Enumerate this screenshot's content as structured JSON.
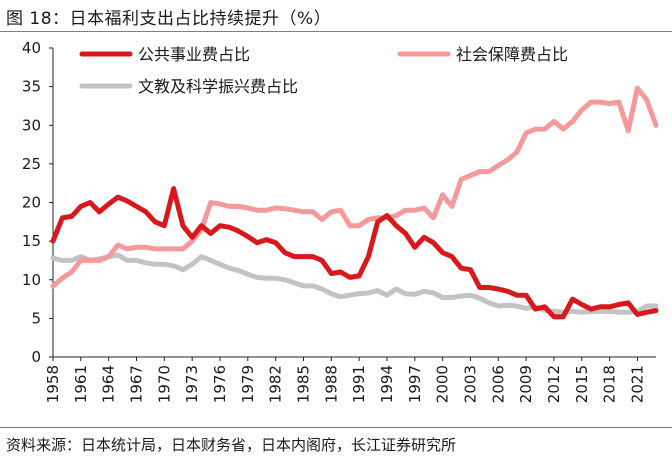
{
  "figure": {
    "title": "图 18：日本福利支出占比持续提升（%）",
    "source": "资料来源：日本统计局，日本财务省，日本内阁府，长江证券研究所"
  },
  "chart_data": {
    "type": "line",
    "title": "日本福利支出占比持续提升（%）",
    "xlabel": "",
    "ylabel": "",
    "ylim": [
      0,
      40
    ],
    "yticks": [
      0,
      5,
      10,
      15,
      20,
      25,
      30,
      35,
      40
    ],
    "xlim": [
      1958,
      2023
    ],
    "xticks": [
      "1958",
      "1961",
      "1964",
      "1967",
      "1970",
      "1973",
      "1976",
      "1979",
      "1982",
      "1985",
      "1988",
      "1991",
      "1994",
      "1997",
      "2000",
      "2003",
      "2006",
      "2009",
      "2012",
      "2015",
      "2018",
      "2021"
    ],
    "grid": false,
    "legend_position": "top",
    "x": [
      1958,
      1959,
      1960,
      1961,
      1962,
      1963,
      1964,
      1965,
      1966,
      1967,
      1968,
      1969,
      1970,
      1971,
      1972,
      1973,
      1974,
      1975,
      1976,
      1977,
      1978,
      1979,
      1980,
      1981,
      1982,
      1983,
      1984,
      1985,
      1986,
      1987,
      1988,
      1989,
      1990,
      1991,
      1992,
      1993,
      1994,
      1995,
      1996,
      1997,
      1998,
      1999,
      2000,
      2001,
      2002,
      2003,
      2004,
      2005,
      2006,
      2007,
      2008,
      2009,
      2010,
      2011,
      2012,
      2013,
      2014,
      2015,
      2016,
      2017,
      2018,
      2019,
      2020,
      2021,
      2022,
      2023
    ],
    "series": [
      {
        "name": "公共事业费占比",
        "color": "#d7191c",
        "values": [
          15,
          18,
          18.2,
          19.5,
          20,
          18.8,
          19.8,
          20.7,
          20.2,
          19.5,
          18.8,
          17.5,
          17,
          21.8,
          17,
          15.5,
          17,
          16,
          17,
          16.8,
          16.3,
          15.6,
          14.8,
          15.2,
          14.8,
          13.5,
          13,
          13,
          13,
          12.5,
          10.8,
          11,
          10.3,
          10.5,
          13,
          17.5,
          18.3,
          17,
          16,
          14.2,
          15.5,
          14.8,
          13.5,
          13,
          11.5,
          11.3,
          9,
          9,
          8.8,
          8.5,
          8,
          8,
          6.2,
          6.5,
          5.2,
          5.2,
          7.5,
          6.8,
          6.2,
          6.5,
          6.5,
          6.8,
          7,
          5.5,
          5.8,
          6
        ]
      },
      {
        "name": "社会保障费占比",
        "color": "#f49a9a",
        "values": [
          9.2,
          10.2,
          11,
          12.5,
          12.5,
          12.5,
          13,
          14.5,
          14,
          14.2,
          14.2,
          14,
          14,
          14,
          14,
          15,
          16.5,
          20,
          19.8,
          19.5,
          19.5,
          19.3,
          19,
          19,
          19.3,
          19.2,
          19,
          18.8,
          18.8,
          17.8,
          18.8,
          19,
          17,
          17,
          17.8,
          18,
          18,
          18.3,
          19,
          19,
          19.3,
          18,
          21,
          19.5,
          23,
          23.5,
          24,
          24,
          24.8,
          25.5,
          26.5,
          29,
          29.5,
          29.5,
          30.5,
          29.5,
          30.5,
          32,
          33,
          33,
          32.8,
          33,
          29.3,
          34.8,
          33.3,
          30
        ]
      },
      {
        "name": "文教及科学振兴费占比",
        "color": "#c3c3c3",
        "values": [
          12.8,
          12.5,
          12.5,
          13,
          12.5,
          12.7,
          13,
          13.2,
          12.5,
          12.5,
          12.2,
          12,
          12,
          11.8,
          11.3,
          12,
          13,
          12.5,
          12,
          11.5,
          11.2,
          10.7,
          10.3,
          10.2,
          10.2,
          10,
          9.6,
          9.2,
          9.2,
          8.8,
          8.2,
          7.8,
          8,
          8.2,
          8.3,
          8.6,
          8,
          8.8,
          8.2,
          8.1,
          8.5,
          8.3,
          7.7,
          7.7,
          7.9,
          8,
          7.6,
          7,
          6.6,
          6.7,
          6.6,
          6.3,
          6.5,
          6,
          5.9,
          5.8,
          5.9,
          5.8,
          5.9,
          5.9,
          5.9,
          5.8,
          5.8,
          5.9,
          6.6,
          6.6
        ]
      }
    ]
  }
}
